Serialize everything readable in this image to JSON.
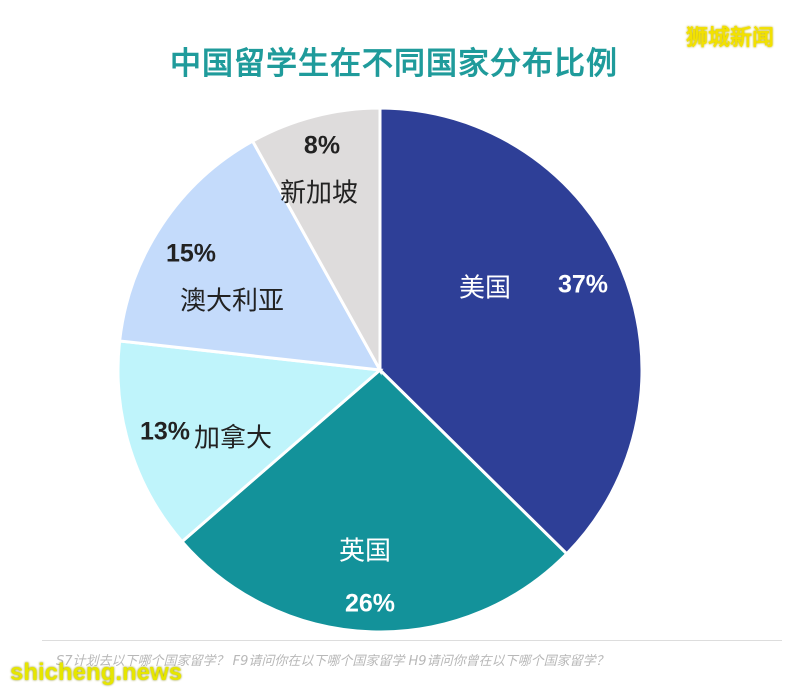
{
  "watermark_top": "狮城新闻",
  "watermark_bottom": "shicheng.news",
  "footnote": "S7计划去以下哪个国家留学？  F9请问你在以下哪个国家留学  H9请问你曾在以下哪个国家留学？",
  "chart_data": {
    "type": "pie",
    "title": "中国留学生在不同国家分布比例",
    "slices": [
      {
        "label": "美国",
        "value": 37,
        "value_label": "37%",
        "color": "#2e3f97",
        "label_color": "#ffffff"
      },
      {
        "label": "英国",
        "value": 26,
        "value_label": "26%",
        "color": "#13929a",
        "label_color": "#ffffff"
      },
      {
        "label": "加拿大",
        "value": 13,
        "value_label": "13%",
        "color": "#bff4fb",
        "label_color": "#222222"
      },
      {
        "label": "澳大利亚",
        "value": 15,
        "value_label": "15%",
        "color": "#c4dbfb",
        "label_color": "#222222"
      },
      {
        "label": "新加坡",
        "value": 8,
        "value_label": "8%",
        "color": "#dedcdc",
        "label_color": "#222222"
      }
    ],
    "start_angle_deg": 0,
    "direction": "clockwise",
    "legend": "none"
  }
}
